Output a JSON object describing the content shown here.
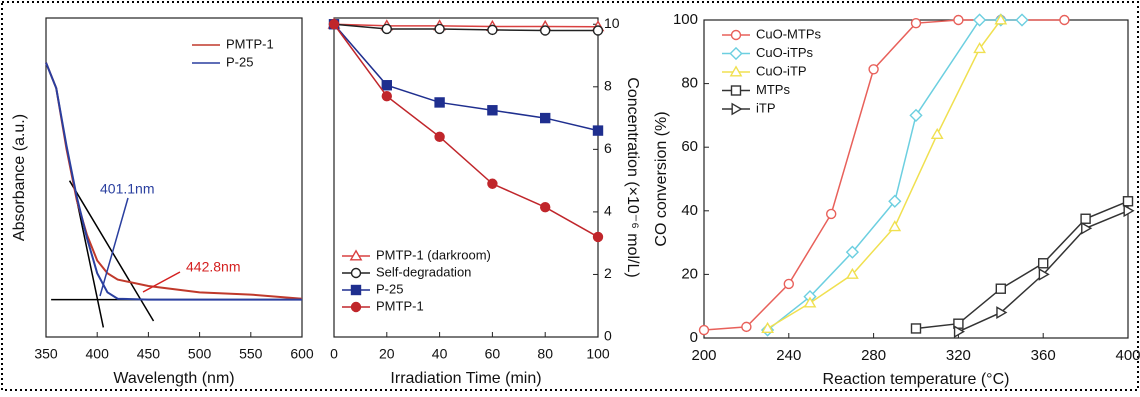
{
  "chart_data": [
    {
      "type": "line",
      "x_label": "Wavelength (nm)",
      "y_label": "Absorbance (a.u.)",
      "xlim": [
        350,
        600
      ],
      "ylim": [
        0,
        1
      ],
      "xticks": [
        350,
        400,
        450,
        500,
        550,
        600
      ],
      "legend": "upper right",
      "series": [
        {
          "name": "PMTP-1",
          "color": "#c0392b",
          "x": [
            350,
            360,
            370,
            380,
            390,
            400,
            410,
            420,
            450,
            500,
            550,
            600
          ],
          "values": [
            0.86,
            0.78,
            0.59,
            0.43,
            0.32,
            0.24,
            0.2,
            0.18,
            0.16,
            0.14,
            0.133,
            0.12
          ]
        },
        {
          "name": "P-25",
          "color": "#2a3f9f",
          "x": [
            350,
            360,
            370,
            380,
            390,
            400,
            410,
            420,
            450,
            500,
            550,
            600
          ],
          "values": [
            0.86,
            0.78,
            0.6,
            0.44,
            0.31,
            0.2,
            0.14,
            0.12,
            0.117,
            0.117,
            0.117,
            0.117
          ]
        }
      ],
      "lines": [
        {
          "color": "#000000",
          "x": [
            355,
            600
          ],
          "values": [
            0.117,
            0.117
          ]
        },
        {
          "color": "#000000",
          "x": [
            380,
            406
          ],
          "values": [
            0.43,
            0.03
          ]
        },
        {
          "color": "#000000",
          "x": [
            373,
            455
          ],
          "values": [
            0.49,
            0.05
          ]
        }
      ],
      "annotations": [
        {
          "text": "401.1nm",
          "color": "#2a3f9f"
        },
        {
          "text": "442.8nm",
          "color": "#d42020"
        }
      ]
    },
    {
      "type": "line",
      "x_label": "Irradiation Time (min)",
      "y_label": "Concentration (×10⁻⁶ mol/L)",
      "y_axis_side": "right",
      "xlim": [
        0,
        100
      ],
      "ylim": [
        0,
        10.2
      ],
      "xticks": [
        0,
        20,
        40,
        60,
        80,
        100
      ],
      "yticks": [
        0,
        2,
        4,
        6,
        8,
        10
      ],
      "legend": "lower left",
      "series": [
        {
          "name": "PMTP-1 (darkroom)",
          "color": "#d94040",
          "marker": "triangle",
          "filled": false,
          "x": [
            0,
            20,
            40,
            60,
            80,
            100
          ],
          "values": [
            10,
            9.95,
            9.95,
            9.93,
            9.93,
            9.92
          ]
        },
        {
          "name": "Self-degradation",
          "color": "#222222",
          "marker": "circle",
          "filled": false,
          "x": [
            0,
            20,
            40,
            60,
            80,
            100
          ],
          "values": [
            10,
            9.85,
            9.85,
            9.82,
            9.8,
            9.8
          ]
        },
        {
          "name": "P-25",
          "color": "#1f2f8f",
          "marker": "square",
          "filled": true,
          "x": [
            0,
            20,
            40,
            60,
            80,
            100
          ],
          "values": [
            10,
            8.05,
            7.5,
            7.25,
            7.0,
            6.6
          ]
        },
        {
          "name": "PMTP-1",
          "color": "#c0262b",
          "marker": "circle",
          "filled": true,
          "x": [
            0,
            20,
            40,
            60,
            80,
            100
          ],
          "values": [
            10,
            7.7,
            6.4,
            4.9,
            4.15,
            3.2
          ]
        }
      ]
    },
    {
      "type": "line",
      "x_label": "Reaction temperature (°C)",
      "y_label": "CO conversion (%)",
      "xlim": [
        200,
        400
      ],
      "ylim": [
        0,
        100
      ],
      "xticks": [
        200,
        240,
        280,
        320,
        360,
        400
      ],
      "yticks": [
        0,
        20,
        40,
        60,
        80,
        100
      ],
      "legend": "upper left",
      "series": [
        {
          "name": "CuO-MTPs",
          "color": "#e8605a",
          "marker": "circle",
          "filled": false,
          "x": [
            200,
            220,
            240,
            260,
            280,
            300,
            320,
            340,
            370
          ],
          "values": [
            2.5,
            3.5,
            17,
            39,
            84.5,
            99,
            100,
            100,
            100
          ]
        },
        {
          "name": "CuO-iTPs",
          "color": "#6ccfe0",
          "marker": "diamond",
          "filled": false,
          "x": [
            230,
            250,
            270,
            290,
            300,
            330,
            340,
            350
          ],
          "values": [
            2.5,
            13,
            27,
            43,
            70,
            100,
            100,
            100
          ]
        },
        {
          "name": "CuO-iTP",
          "color": "#f0e050",
          "marker": "triangle",
          "filled": false,
          "x": [
            230,
            250,
            270,
            290,
            310,
            330,
            340
          ],
          "values": [
            3,
            11,
            20,
            35,
            64,
            91,
            100
          ]
        },
        {
          "name": "MTPs",
          "color": "#333333",
          "marker": "square",
          "filled": false,
          "x": [
            300,
            320,
            340,
            360,
            380,
            400
          ],
          "values": [
            3,
            4.5,
            15.5,
            23.5,
            37.5,
            43
          ]
        },
        {
          "name": "iTP",
          "color": "#333333",
          "marker": "triangle-right",
          "filled": false,
          "x": [
            320,
            340,
            360,
            380,
            400
          ],
          "values": [
            2,
            8,
            20,
            34.5,
            40
          ]
        }
      ]
    }
  ]
}
